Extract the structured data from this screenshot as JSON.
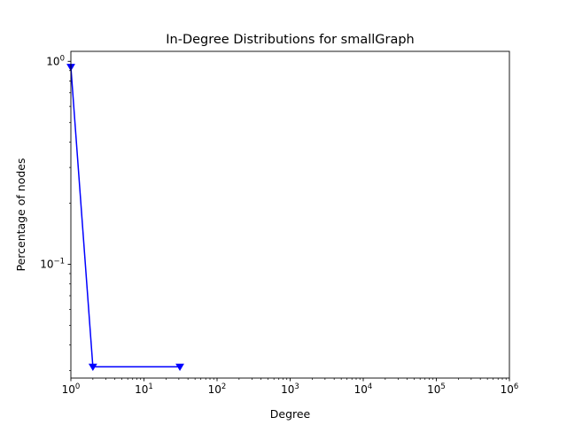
{
  "chart_data": {
    "type": "line",
    "title": "In-Degree Distributions for smallGraph",
    "xlabel": "Degree",
    "ylabel": "Percentage of nodes",
    "x_scale": "log",
    "y_scale": "log",
    "xlim": [
      1,
      1000000
    ],
    "ylim": [
      0.0275,
      1.12
    ],
    "x_ticks": [
      {
        "value": 1,
        "base": "10",
        "exp": "0"
      },
      {
        "value": 10,
        "base": "10",
        "exp": "1"
      },
      {
        "value": 100,
        "base": "10",
        "exp": "2"
      },
      {
        "value": 1000,
        "base": "10",
        "exp": "3"
      },
      {
        "value": 10000,
        "base": "10",
        "exp": "4"
      },
      {
        "value": 100000,
        "base": "10",
        "exp": "5"
      },
      {
        "value": 1000000,
        "base": "10",
        "exp": "6"
      }
    ],
    "y_ticks": [
      {
        "value": 1,
        "base": "10",
        "exp": "0"
      },
      {
        "value": 0.1,
        "base": "10",
        "exp": "−1"
      }
    ],
    "grid": false,
    "series": [
      {
        "color": "#0000ff",
        "marker": "triangle-down",
        "x": [
          1,
          2,
          31
        ],
        "y": [
          0.9375,
          0.03125,
          0.03125
        ]
      }
    ]
  }
}
